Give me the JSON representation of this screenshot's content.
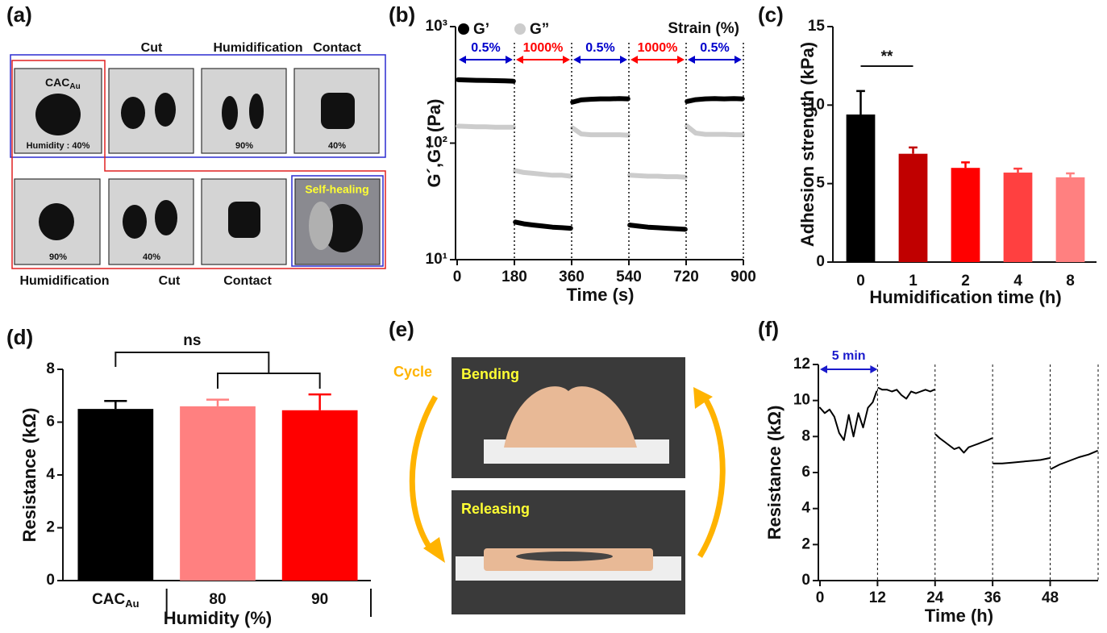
{
  "chart_data": [
    {
      "panel_label": "(b)",
      "type": "line",
      "x": [
        3,
        30,
        60,
        90,
        120,
        150,
        177,
        180,
        183,
        210,
        240,
        270,
        300,
        330,
        357,
        360,
        363,
        390,
        420,
        450,
        480,
        510,
        537,
        540,
        543,
        570,
        600,
        630,
        660,
        690,
        717,
        720,
        723,
        750,
        780,
        810,
        840,
        870,
        897
      ],
      "series": [
        {
          "name": "G’",
          "color": "#000000",
          "values": [
            350,
            348,
            346,
            345,
            344,
            342,
            340,
            null,
            21,
            20.3,
            19.8,
            19.4,
            19,
            18.8,
            18.6,
            null,
            225,
            235,
            238,
            240,
            240,
            241,
            240,
            null,
            19.8,
            19.4,
            19,
            18.8,
            18.6,
            18.4,
            18.2,
            null,
            228,
            236,
            240,
            241,
            240,
            241,
            240
          ]
        },
        {
          "name": "G”",
          "color": "#cccccc",
          "values": [
            140,
            139,
            138,
            138,
            137,
            137,
            137,
            null,
            58,
            56,
            55,
            54,
            53,
            53,
            52,
            null,
            135,
            120,
            118,
            118,
            118,
            118,
            117,
            null,
            53,
            52.5,
            52,
            52,
            51.5,
            51.5,
            51,
            null,
            140,
            122,
            119,
            119,
            119,
            118,
            118
          ]
        }
      ],
      "xlim": [
        0,
        900
      ],
      "xticks": [
        0,
        180,
        360,
        540,
        720,
        900
      ],
      "ylim": [
        10,
        1000
      ],
      "yticks": [
        {
          "value": 10,
          "label": "10¹"
        },
        {
          "value": 100,
          "label": "10²"
        },
        {
          "value": 1000,
          "label": "10³"
        }
      ],
      "log_y": true,
      "x_label": "Time (s)",
      "y_label": "G´,G´´ (Pa)",
      "strain_label": "Strain (%)",
      "strain_segments": [
        {
          "label": "0.5%",
          "color": "#0000cc"
        },
        {
          "label": "1000%",
          "color": "#ff0000"
        },
        {
          "label": "0.5%",
          "color": "#0000cc"
        },
        {
          "label": "1000%",
          "color": "#ff0000"
        },
        {
          "label": "0.5%",
          "color": "#0000cc"
        }
      ]
    },
    {
      "panel_label": "(c)",
      "type": "bar",
      "categories": [
        "0",
        "1",
        "2",
        "4",
        "8"
      ],
      "values": [
        9.4,
        6.9,
        6.0,
        5.7,
        5.4
      ],
      "errors": [
        1.5,
        0.4,
        0.35,
        0.25,
        0.25
      ],
      "colors": [
        "#000000",
        "#c00000",
        "#ff0000",
        "#ff4040",
        "#ff8080"
      ],
      "ylim": [
        0,
        15
      ],
      "yticks": [
        0,
        5,
        10,
        15
      ],
      "x_label": "Humidification time (h)",
      "y_label": "Adhesion strength (kPa)",
      "significance": "**"
    },
    {
      "panel_label": "(d)",
      "type": "bar",
      "categories": [
        "CAC",
        "80",
        "90"
      ],
      "category_subscripts": [
        "Au",
        null,
        null
      ],
      "values": [
        6.5,
        6.6,
        6.45
      ],
      "errors": [
        0.3,
        0.25,
        0.6
      ],
      "colors": [
        "#000000",
        "#ff8080",
        "#ff0000"
      ],
      "ylim": [
        0,
        8
      ],
      "yticks": [
        0,
        2,
        4,
        6,
        8
      ],
      "x_label": "Humidity (%)",
      "y_label": "Resistance (kΩ)",
      "significance": "ns"
    },
    {
      "panel_label": "(f)",
      "type": "line",
      "x": [
        0,
        1,
        2,
        3,
        4,
        5,
        6,
        7,
        8,
        9,
        10,
        11,
        11.8,
        12,
        12.2,
        13,
        14,
        15,
        16,
        17,
        18,
        19,
        20,
        21,
        22,
        23,
        23.8,
        24,
        24.2,
        25,
        26,
        27,
        28,
        29,
        30,
        31,
        32,
        33,
        34,
        35,
        35.8,
        36,
        36.2,
        38,
        40,
        42,
        44,
        46,
        47.8,
        48,
        48.2,
        50,
        52,
        54,
        56,
        57.8
      ],
      "series": [
        {
          "color": "#000000",
          "values": [
            9.6,
            9.3,
            9.5,
            9.1,
            8.2,
            7.8,
            9.2,
            8.0,
            9.3,
            8.5,
            9.6,
            9.9,
            10.5,
            null,
            10.7,
            10.6,
            10.6,
            10.5,
            10.6,
            10.3,
            10.1,
            10.5,
            10.4,
            10.5,
            10.6,
            10.5,
            10.6,
            null,
            8.1,
            7.9,
            7.7,
            7.5,
            7.3,
            7.4,
            7.1,
            7.4,
            7.5,
            7.6,
            7.7,
            7.8,
            7.9,
            null,
            6.5,
            6.5,
            6.55,
            6.6,
            6.65,
            6.7,
            6.8,
            null,
            6.2,
            6.45,
            6.65,
            6.85,
            7.0,
            7.2
          ]
        }
      ],
      "xlim": [
        0,
        58
      ],
      "xticks": [
        0,
        12,
        24,
        36,
        48
      ],
      "ylim": [
        0,
        12
      ],
      "yticks": [
        0,
        2,
        4,
        6,
        8,
        10,
        12
      ],
      "x_label": "Time (h)",
      "y_label": "Resistance (kΩ)",
      "interval_label": "5 min"
    }
  ],
  "photos": {
    "a": {
      "panel_label": "(a)",
      "top_labels": [
        "Cut",
        "Humidification",
        "Contact"
      ],
      "sample": "CAC",
      "sample_sub": "Au",
      "captions": [
        "Humidity : 40%",
        "90%",
        "40%",
        "90%",
        "40%"
      ],
      "self_healing": "Self-healing",
      "bottom_labels": [
        "Humidification",
        "Cut",
        "Contact"
      ]
    },
    "e": {
      "panel_label": "(e)",
      "states": [
        "Bending",
        "Releasing"
      ],
      "cycle": "Cycle"
    }
  }
}
